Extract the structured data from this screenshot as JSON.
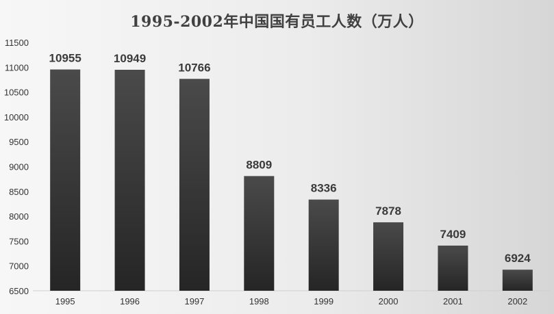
{
  "chart_data": {
    "type": "bar",
    "title": "1995-2002年中国国有员工人数（万人）",
    "categories": [
      "1995",
      "1996",
      "1997",
      "1998",
      "1999",
      "2000",
      "2001",
      "2002"
    ],
    "values": [
      10955,
      10949,
      10766,
      8809,
      8336,
      7878,
      7409,
      6924
    ],
    "ylim": [
      6500,
      11500
    ],
    "yticks": [
      6500,
      7000,
      7500,
      8000,
      8500,
      9000,
      9500,
      10000,
      10500,
      11000,
      11500
    ],
    "grid": false,
    "legend": "none",
    "xlabel": "",
    "ylabel": "",
    "colors": {
      "bar_top": "#4a4a4a",
      "bar_bottom": "#252525",
      "label": "#3a3a3a"
    }
  }
}
